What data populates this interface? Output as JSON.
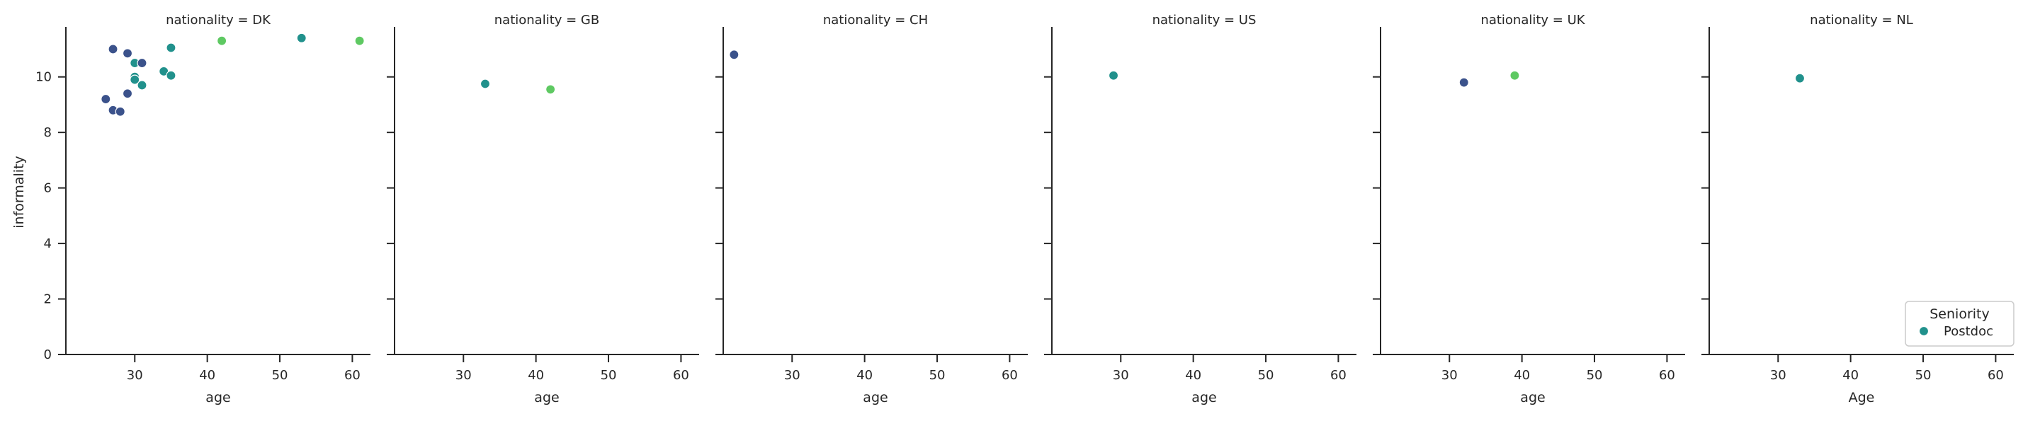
{
  "chart_data": {
    "type": "scatter",
    "facet_variable": "nationality",
    "panels": [
      {
        "title": "nationality = DK",
        "points": [
          {
            "x": 26,
            "y": 9.2,
            "seniority": "dark"
          },
          {
            "x": 27,
            "y": 11.0,
            "seniority": "dark"
          },
          {
            "x": 27,
            "y": 8.8,
            "seniority": "dark"
          },
          {
            "x": 28,
            "y": 8.75,
            "seniority": "dark"
          },
          {
            "x": 29,
            "y": 10.85,
            "seniority": "dark"
          },
          {
            "x": 29,
            "y": 9.4,
            "seniority": "dark"
          },
          {
            "x": 30,
            "y": 10.5,
            "seniority": "Postdoc"
          },
          {
            "x": 30,
            "y": 10.0,
            "seniority": "Postdoc"
          },
          {
            "x": 30,
            "y": 9.9,
            "seniority": "Postdoc"
          },
          {
            "x": 31,
            "y": 10.5,
            "seniority": "dark"
          },
          {
            "x": 31,
            "y": 9.7,
            "seniority": "Postdoc"
          },
          {
            "x": 34,
            "y": 10.2,
            "seniority": "Postdoc"
          },
          {
            "x": 35,
            "y": 11.05,
            "seniority": "Postdoc"
          },
          {
            "x": 35,
            "y": 10.05,
            "seniority": "Postdoc"
          },
          {
            "x": 42,
            "y": 11.3,
            "seniority": "light"
          },
          {
            "x": 53,
            "y": 11.4,
            "seniority": "Postdoc"
          },
          {
            "x": 61,
            "y": 11.3,
            "seniority": "light"
          }
        ]
      },
      {
        "title": "nationality = GB",
        "points": [
          {
            "x": 33,
            "y": 9.75,
            "seniority": "Postdoc"
          },
          {
            "x": 42,
            "y": 9.55,
            "seniority": "light"
          }
        ]
      },
      {
        "title": "nationality = CH",
        "points": [
          {
            "x": 22,
            "y": 10.8,
            "seniority": "dark"
          }
        ]
      },
      {
        "title": "nationality = US",
        "points": [
          {
            "x": 29,
            "y": 10.05,
            "seniority": "Postdoc"
          }
        ]
      },
      {
        "title": "nationality = UK",
        "points": [
          {
            "x": 32,
            "y": 9.8,
            "seniority": "dark"
          },
          {
            "x": 39,
            "y": 10.05,
            "seniority": "light"
          }
        ]
      },
      {
        "title": "nationality = NL",
        "points": [
          {
            "x": 33,
            "y": 9.95,
            "seniority": "Postdoc"
          }
        ]
      }
    ],
    "xlabels": [
      "age",
      "age",
      "age",
      "age",
      "age",
      "Age"
    ],
    "ylabel": "informality",
    "xlim": [
      20.5,
      62.5
    ],
    "ylim": [
      0,
      11.7
    ],
    "xticks": [
      30,
      40,
      50,
      60
    ],
    "yticks": [
      0,
      2,
      4,
      6,
      8,
      10
    ],
    "grid": false,
    "legend": {
      "title": "Seniority",
      "placement": "lower-right",
      "entries": [
        {
          "label": "Postdoc",
          "color_key": "Postdoc"
        }
      ]
    },
    "colors": {
      "dark": "#3b528b",
      "Postdoc": "#21918c",
      "light": "#5ec962",
      "axis": "#262626",
      "text": "#262626"
    }
  }
}
